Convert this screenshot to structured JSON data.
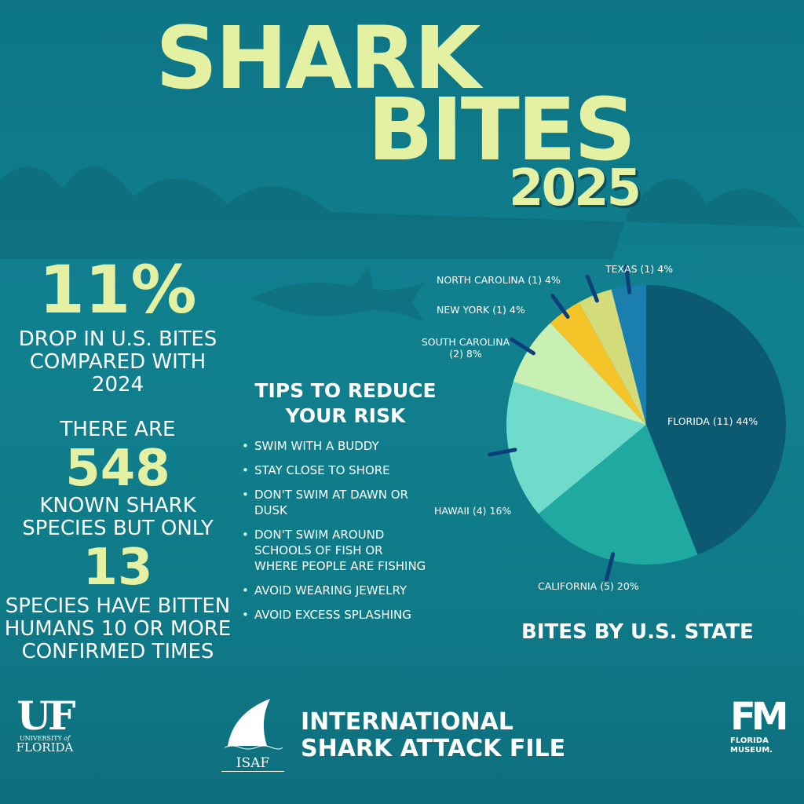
{
  "title": {
    "line1": "SHARK",
    "line2": "BITES",
    "year": "2025"
  },
  "stats": {
    "drop_value": "11%",
    "drop_text": "DROP IN U.S. BITES COMPARED WITH 2024",
    "there_are": "THERE ARE",
    "species_total": "548",
    "species_text": "KNOWN SHARK SPECIES BUT ONLY",
    "species_biting": "13",
    "biting_text": "SPECIES HAVE BITTEN HUMANS 10 OR MORE CONFIRMED TIMES"
  },
  "tips": {
    "heading": "TIPS TO REDUCE YOUR RISK",
    "items": [
      "SWIM WITH A BUDDY",
      "STAY CLOSE TO SHORE",
      "DON'T SWIM AT DAWN OR DUSK",
      "DON'T SWIM AROUND SCHOOLS OF FISH OR WHERE PEOPLE ARE FISHING",
      "AVOID WEARING JEWELRY",
      "AVOID EXCESS SPLASHING"
    ]
  },
  "chart_data": {
    "type": "pie",
    "title": "BITES BY U.S. STATE",
    "categories": [
      "FLORIDA",
      "CALIFORNIA",
      "HAWAII",
      "SOUTH CAROLINA",
      "NEW YORK",
      "NORTH CAROLINA",
      "TEXAS"
    ],
    "counts": [
      11,
      5,
      4,
      2,
      1,
      1,
      1
    ],
    "values": [
      44,
      20,
      16,
      8,
      4,
      4,
      4
    ],
    "labels": [
      "FLORIDA (11) 44%",
      "CALIFORNIA (5) 20%",
      "HAWAII (4) 16%",
      "SOUTH CAROLINA (2) 8%",
      "NEW YORK (1) 4%",
      "NORTH CAROLINA (1) 4%",
      "TEXAS (1) 4%"
    ],
    "colors": [
      "#0b5a72",
      "#1fa9a0",
      "#6fdccb",
      "#c8f0b4",
      "#f5c428",
      "#d4dc7a",
      "#1a7fae"
    ],
    "start": "12 o'clock, clockwise"
  },
  "footer": {
    "uf_logo": "UF UNIVERSITY of FLORIDA",
    "isaf_mark": "ISAF",
    "isaf_name": "INTERNATIONAL SHARK ATTACK FILE",
    "museum_logo": "FM FLORIDA MUSEUM."
  },
  "colors": {
    "background": "#10808f",
    "accent": "#e4f1a3"
  }
}
